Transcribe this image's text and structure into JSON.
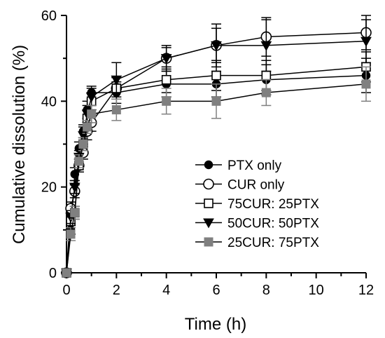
{
  "chart_data": {
    "type": "line",
    "title": "",
    "xlabel": "Time (h)",
    "ylabel": "Cumulative dissolution (%)",
    "xlim": [
      0,
      12
    ],
    "ylim": [
      0,
      60
    ],
    "xticks": [
      0,
      2,
      4,
      6,
      8,
      10,
      12
    ],
    "yticks": [
      0,
      20,
      40,
      60
    ],
    "grid": false,
    "legend_position": "bottom-right",
    "x": [
      0,
      0.17,
      0.33,
      0.5,
      0.67,
      0.83,
      1,
      2,
      4,
      6,
      8,
      12
    ],
    "series": [
      {
        "name": "PTX only",
        "marker": "filled-circle",
        "color": "#000000",
        "values": [
          0,
          10,
          23,
          29,
          33,
          38,
          42,
          42,
          44,
          44,
          45,
          46
        ],
        "errors": [
          0,
          1,
          1.5,
          1.5,
          1.5,
          2,
          1.5,
          2.5,
          3,
          3,
          3.5,
          4
        ]
      },
      {
        "name": "CUR only",
        "marker": "open-circle",
        "color": "#000000",
        "values": [
          0,
          15,
          19,
          25,
          28,
          33,
          35,
          43,
          50,
          53,
          55,
          56
        ],
        "errors": [
          0,
          1.5,
          1.5,
          1.5,
          1.5,
          2,
          2,
          2.5,
          2.5,
          4,
          4.5,
          4
        ]
      },
      {
        "name": "75CUR: 25PTX",
        "marker": "open-square",
        "color": "#000000",
        "values": [
          0,
          12,
          14,
          25,
          30,
          36,
          40,
          43,
          45,
          46,
          46,
          48
        ],
        "errors": [
          0,
          1.5,
          1.5,
          1.5,
          1.5,
          2,
          2,
          2.5,
          3,
          3.5,
          3.5,
          3.5
        ]
      },
      {
        "name": "50CUR: 50PTX",
        "marker": "filled-triangle-down",
        "color": "#000000",
        "values": [
          0,
          13,
          20,
          27,
          32,
          37,
          41,
          45,
          50,
          53,
          53,
          54
        ],
        "errors": [
          0,
          1.5,
          1.5,
          1.5,
          2,
          2,
          2,
          4,
          3,
          5,
          6,
          5
        ]
      },
      {
        "name": "25CUR: 75PTX",
        "marker": "filled-square",
        "color": "#808080",
        "values": [
          0,
          9,
          14,
          26,
          30,
          34,
          37,
          38,
          40,
          40,
          42,
          44
        ],
        "errors": [
          0,
          1.5,
          1.5,
          1.5,
          1.5,
          1.5,
          2,
          2.5,
          3,
          4,
          3,
          4
        ]
      }
    ]
  }
}
